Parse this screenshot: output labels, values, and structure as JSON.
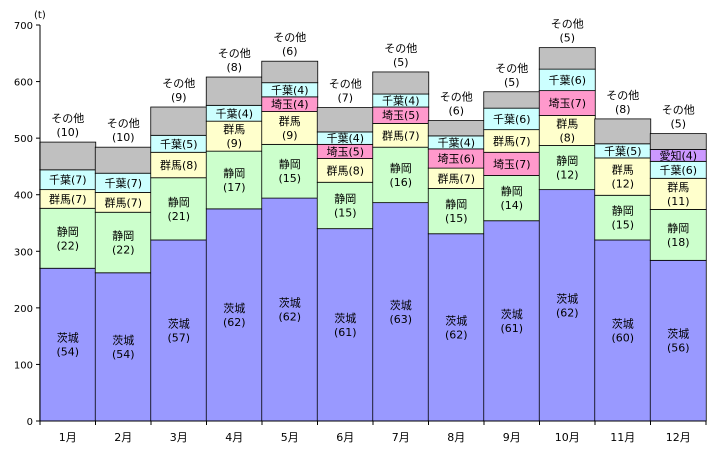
{
  "chart_data": {
    "type": "bar",
    "stacked": true,
    "unit_label": "(t)",
    "yticks": [
      "0",
      "100",
      "200",
      "300",
      "400",
      "500",
      "600",
      "700"
    ],
    "ylim": [
      0,
      700
    ],
    "grid": false,
    "categories": [
      "1月",
      "2月",
      "3月",
      "4月",
      "5月",
      "6月",
      "7月",
      "8月",
      "9月",
      "10月",
      "11月",
      "12月"
    ],
    "series_colors": {
      "茨城": "#9999ff",
      "静岡": "#ccffcc",
      "群馬": "#ffffcc",
      "千葉": "#ccffff",
      "埼玉": "#ff99cc",
      "愛知": "#cc99ff",
      "その他": "#c0c0c0"
    },
    "bars": [
      {
        "category": "1月",
        "total": 493,
        "segments": [
          {
            "name": "茨城",
            "value": 270,
            "label": "茨城\n(54)"
          },
          {
            "name": "静岡",
            "value": 106,
            "label": "静岡\n(22)"
          },
          {
            "name": "群馬",
            "value": 33,
            "label": "群馬(7)"
          },
          {
            "name": "千葉",
            "value": 35,
            "label": "千葉(7)"
          },
          {
            "name": "その他",
            "value": 49,
            "label": "その他\n(10)"
          }
        ]
      },
      {
        "category": "2月",
        "total": 484,
        "segments": [
          {
            "name": "茨城",
            "value": 262,
            "label": "茨城\n(54)"
          },
          {
            "name": "静岡",
            "value": 107,
            "label": "静岡\n(22)"
          },
          {
            "name": "群馬",
            "value": 35,
            "label": "群馬(7)"
          },
          {
            "name": "千葉",
            "value": 34,
            "label": "千葉(7)"
          },
          {
            "name": "その他",
            "value": 46,
            "label": "その他\n(10)"
          }
        ]
      },
      {
        "category": "3月",
        "total": 555,
        "segments": [
          {
            "name": "茨城",
            "value": 320,
            "label": "茨城\n(57)"
          },
          {
            "name": "静岡",
            "value": 110,
            "label": "静岡\n(21)"
          },
          {
            "name": "群馬",
            "value": 45,
            "label": "群馬(8)"
          },
          {
            "name": "千葉",
            "value": 30,
            "label": "千葉(5)"
          },
          {
            "name": "その他",
            "value": 50,
            "label": "その他\n(9)"
          }
        ]
      },
      {
        "category": "4月",
        "total": 608,
        "segments": [
          {
            "name": "茨城",
            "value": 375,
            "label": "茨城\n(62)"
          },
          {
            "name": "静岡",
            "value": 102,
            "label": "静岡\n(17)"
          },
          {
            "name": "群馬",
            "value": 53,
            "label": "群馬\n(9)"
          },
          {
            "name": "千葉",
            "value": 28,
            "label": "千葉(4)"
          },
          {
            "name": "その他",
            "value": 50,
            "label": "その他\n(8)"
          }
        ]
      },
      {
        "category": "5月",
        "total": 636,
        "segments": [
          {
            "name": "茨城",
            "value": 394,
            "label": "茨城\n(62)"
          },
          {
            "name": "静岡",
            "value": 95,
            "label": "静岡\n(15)"
          },
          {
            "name": "群馬",
            "value": 58,
            "label": "群馬\n(9)"
          },
          {
            "name": "埼玉",
            "value": 26,
            "label": "埼玉(4)"
          },
          {
            "name": "千葉",
            "value": 25,
            "label": "千葉(4)"
          },
          {
            "name": "その他",
            "value": 38,
            "label": "その他\n(6)"
          }
        ]
      },
      {
        "category": "6月",
        "total": 554,
        "segments": [
          {
            "name": "茨城",
            "value": 340,
            "label": "茨城\n(61)"
          },
          {
            "name": "静岡",
            "value": 82,
            "label": "静岡\n(15)"
          },
          {
            "name": "群馬",
            "value": 42,
            "label": "群馬(8)"
          },
          {
            "name": "埼玉",
            "value": 25,
            "label": "埼玉(5)"
          },
          {
            "name": "千葉",
            "value": 22,
            "label": "千葉(4)"
          },
          {
            "name": "その他",
            "value": 43,
            "label": "その他\n(7)"
          }
        ]
      },
      {
        "category": "7月",
        "total": 617,
        "segments": [
          {
            "name": "茨城",
            "value": 386,
            "label": "茨城\n(63)"
          },
          {
            "name": "静岡",
            "value": 98,
            "label": "静岡\n(16)"
          },
          {
            "name": "群馬",
            "value": 42,
            "label": "群馬(7)"
          },
          {
            "name": "埼玉",
            "value": 29,
            "label": "埼玉(5)"
          },
          {
            "name": "千葉",
            "value": 23,
            "label": "千葉(4)"
          },
          {
            "name": "その他",
            "value": 39,
            "label": "その他\n(5)"
          }
        ]
      },
      {
        "category": "8月",
        "total": 531,
        "segments": [
          {
            "name": "茨城",
            "value": 331,
            "label": "茨城\n(62)"
          },
          {
            "name": "静岡",
            "value": 80,
            "label": "静岡\n(15)"
          },
          {
            "name": "群馬",
            "value": 36,
            "label": "群馬(7)"
          },
          {
            "name": "埼玉",
            "value": 34,
            "label": "埼玉(6)"
          },
          {
            "name": "千葉",
            "value": 23,
            "label": "千葉(4)"
          },
          {
            "name": "その他",
            "value": 27,
            "label": "その他\n(6)"
          }
        ]
      },
      {
        "category": "9月",
        "total": 582,
        "segments": [
          {
            "name": "茨城",
            "value": 354,
            "label": "茨城\n(61)"
          },
          {
            "name": "静岡",
            "value": 80,
            "label": "静岡\n(14)"
          },
          {
            "name": "埼玉",
            "value": 41,
            "label": "埼玉(7)"
          },
          {
            "name": "群馬",
            "value": 40,
            "label": "群馬(7)"
          },
          {
            "name": "千葉",
            "value": 38,
            "label": "千葉(6)"
          },
          {
            "name": "その他",
            "value": 29,
            "label": "その他\n(5)"
          }
        ]
      },
      {
        "category": "10月",
        "total": 660,
        "segments": [
          {
            "name": "茨城",
            "value": 409,
            "label": "茨城\n(62)"
          },
          {
            "name": "静岡",
            "value": 78,
            "label": "静岡\n(12)"
          },
          {
            "name": "群馬",
            "value": 53,
            "label": "群馬\n(8)"
          },
          {
            "name": "埼玉",
            "value": 44,
            "label": "埼玉(7)"
          },
          {
            "name": "千葉",
            "value": 38,
            "label": "千葉(6)"
          },
          {
            "name": "その他",
            "value": 38,
            "label": "その他\n(5)"
          }
        ]
      },
      {
        "category": "11月",
        "total": 534,
        "segments": [
          {
            "name": "茨城",
            "value": 320,
            "label": "茨城\n(60)"
          },
          {
            "name": "静岡",
            "value": 79,
            "label": "静岡\n(15)"
          },
          {
            "name": "群馬",
            "value": 66,
            "label": "群馬\n(12)"
          },
          {
            "name": "千葉",
            "value": 25,
            "label": "千葉(5)"
          },
          {
            "name": "その他",
            "value": 44,
            "label": "その他\n(8)"
          }
        ]
      },
      {
        "category": "12月",
        "total": 508,
        "segments": [
          {
            "name": "茨城",
            "value": 284,
            "label": "茨城\n(56)"
          },
          {
            "name": "静岡",
            "value": 90,
            "label": "静岡\n(18)"
          },
          {
            "name": "群馬",
            "value": 55,
            "label": "群馬\n(11)"
          },
          {
            "name": "千葉",
            "value": 30,
            "label": "千葉(6)"
          },
          {
            "name": "愛知",
            "value": 21,
            "label": "愛知(4)"
          },
          {
            "name": "その他",
            "value": 28,
            "label": "その他\n(5)"
          }
        ]
      }
    ]
  }
}
